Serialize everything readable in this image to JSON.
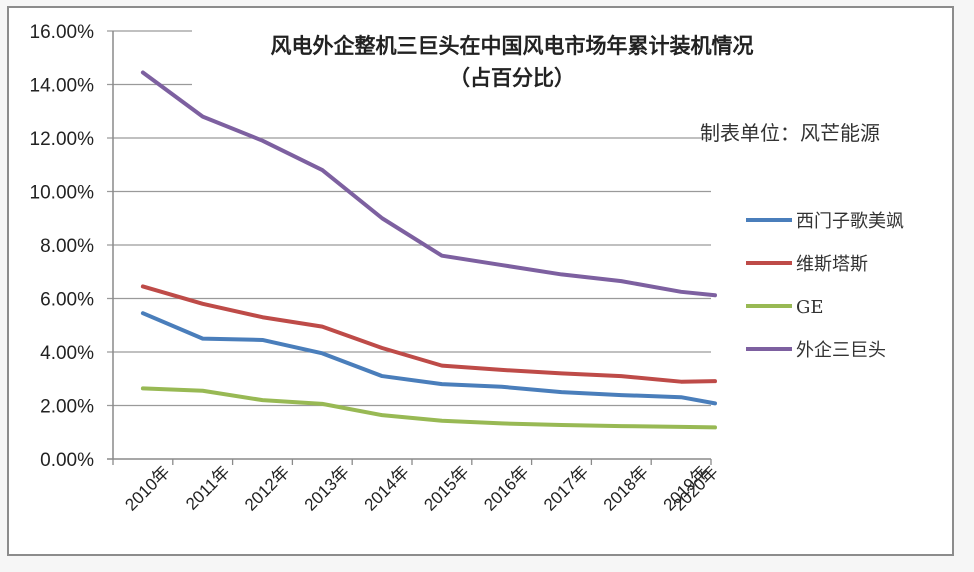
{
  "chart_data": {
    "type": "line",
    "title": "风电外企整机三巨头在中国风电市场年累计装机情况",
    "subtitle": "（占百分比）",
    "annotation": "制表单位：风芒能源",
    "xlabel": "",
    "ylabel": "",
    "ylim": [
      0,
      16
    ],
    "y_tick_values": [
      0,
      2,
      4,
      6,
      8,
      10,
      12,
      14,
      16
    ],
    "y_tick_labels": [
      "0.00%",
      "2.00%",
      "4.00%",
      "6.00%",
      "8.00%",
      "10.00%",
      "12.00%",
      "14.00%",
      "16.00%"
    ],
    "categories": [
      "2010年",
      "2011年",
      "2012年",
      "2013年",
      "2014年",
      "2015年",
      "2016年",
      "2017年",
      "2018年",
      "2019年",
      "2020年"
    ],
    "grid": true,
    "legend_position": "right",
    "series": [
      {
        "name": "西门子歌美飒",
        "color": "#4a7ebb",
        "values": [
          5.45,
          4.5,
          4.45,
          3.95,
          3.1,
          2.8,
          2.7,
          2.5,
          2.39,
          2.31,
          2.08
        ]
      },
      {
        "name": "维斯塔斯",
        "color": "#be4b48",
        "values": [
          6.45,
          5.8,
          5.3,
          4.95,
          4.15,
          3.49,
          3.33,
          3.2,
          3.1,
          2.89,
          2.91
        ]
      },
      {
        "name": "GE",
        "color": "#98b954",
        "values": [
          2.64,
          2.55,
          2.2,
          2.06,
          1.64,
          1.43,
          1.33,
          1.27,
          1.23,
          1.2,
          1.18
        ]
      },
      {
        "name": "外企三巨头",
        "color": "#7d60a0",
        "values": [
          14.45,
          12.8,
          11.9,
          10.8,
          9.0,
          7.6,
          7.25,
          6.9,
          6.65,
          6.25,
          6.12
        ]
      }
    ]
  }
}
